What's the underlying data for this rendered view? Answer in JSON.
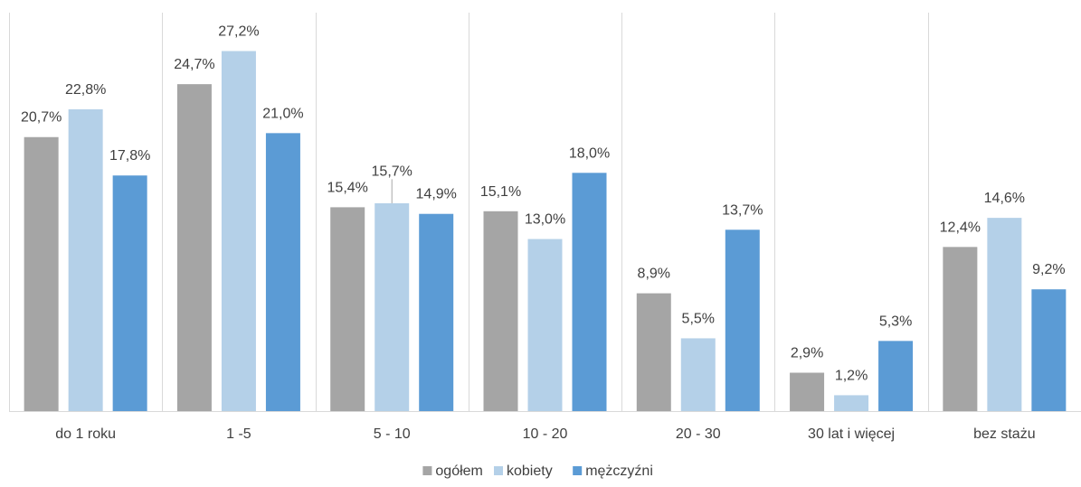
{
  "chart_data": {
    "type": "bar",
    "title": "",
    "xlabel": "",
    "ylabel": "",
    "ylim": [
      0,
      30
    ],
    "grid": "vertical separators between categories",
    "legend_position": "bottom",
    "categories": [
      "do 1 roku",
      "1 -5",
      "5 - 10",
      "10 - 20",
      "20 - 30",
      "30 lat i więcej",
      "bez stażu"
    ],
    "series": [
      {
        "name": "ogółem",
        "color": "#A5A5A5",
        "values": [
          20.7,
          24.7,
          15.4,
          15.1,
          8.9,
          2.9,
          12.4
        ],
        "labels": [
          "20,7%",
          "24,7%",
          "15,4%",
          "15,1%",
          "8,9%",
          "2,9%",
          "12,4%"
        ]
      },
      {
        "name": "kobiety",
        "color": "#B4D0E8",
        "values": [
          22.8,
          27.2,
          15.7,
          13.0,
          5.5,
          1.2,
          14.6
        ],
        "labels": [
          "22,8%",
          "27,2%",
          "15,7%",
          "13,0%",
          "5,5%",
          "1,2%",
          "14,6%"
        ]
      },
      {
        "name": "mężczyźni",
        "color": "#5B9BD5",
        "values": [
          17.8,
          21.0,
          14.9,
          18.0,
          13.7,
          5.3,
          9.2
        ],
        "labels": [
          "17,8%",
          "21,0%",
          "14,9%",
          "18,0%",
          "13,7%",
          "5,3%",
          "9,2%"
        ]
      }
    ]
  }
}
